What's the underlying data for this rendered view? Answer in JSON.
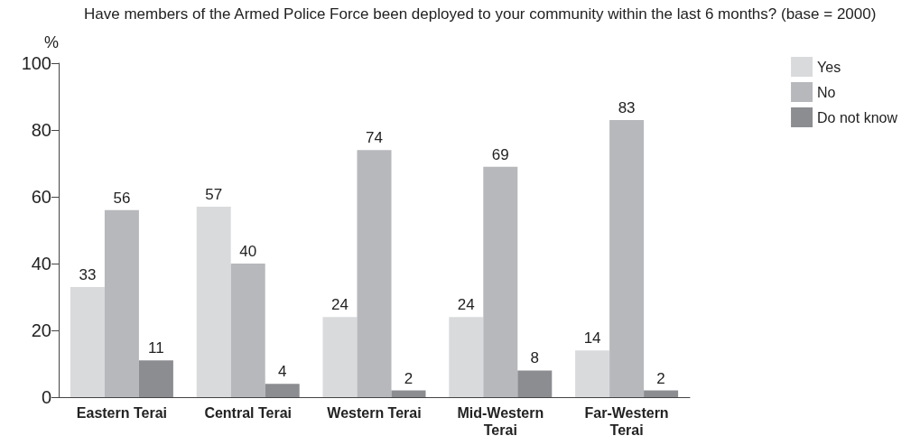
{
  "chart_data": {
    "type": "bar",
    "title": "Have members of the Armed Police Force been deployed to your community within the last 6 months? (base = 2000)",
    "ylabel": "%",
    "categories": [
      "Eastern Terai",
      "Central Terai",
      "Western Terai",
      "Mid-Western\nTerai",
      "Far-Western\nTerai"
    ],
    "series": [
      {
        "name": "Yes",
        "color": "#d9dadc",
        "values": [
          33,
          57,
          24,
          24,
          14
        ]
      },
      {
        "name": "No",
        "color": "#b7b8bc",
        "values": [
          56,
          40,
          74,
          69,
          83
        ]
      },
      {
        "name": "Do not know",
        "color": "#8c8d91",
        "values": [
          11,
          4,
          2,
          8,
          2
        ]
      }
    ],
    "ylim": [
      0,
      100
    ],
    "yticks": [
      0,
      20,
      40,
      60,
      80,
      100
    ],
    "grid": false,
    "legend": "top right",
    "data_labels": true
  }
}
